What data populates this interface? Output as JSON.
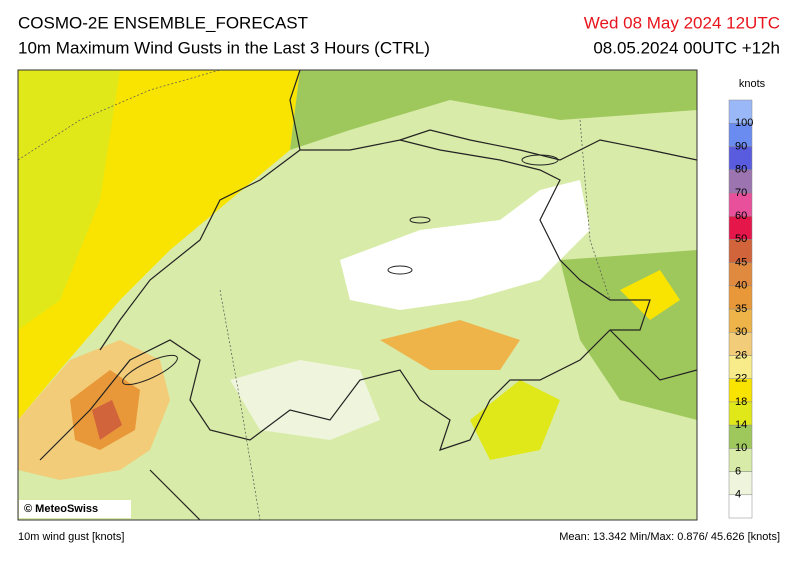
{
  "header": {
    "title": "COSMO-2E ENSEMBLE_FORECAST",
    "subtitle": "10m Maximum Wind Gusts in the Last 3 Hours (CTRL)",
    "valid_time": "Wed 08 May 2024 12UTC",
    "run": "08.05.2024 00UTC +12h"
  },
  "map": {
    "credit": "© MeteoSwiss"
  },
  "colorbar": {
    "unit": "knots",
    "ticks": [
      4,
      6,
      10,
      14,
      18,
      22,
      26,
      30,
      35,
      40,
      45,
      50,
      60,
      70,
      80,
      90,
      100
    ],
    "colors": [
      "#ffffff",
      "#eef5dc",
      "#d8eba8",
      "#9fc85c",
      "#e1e81a",
      "#f8e400",
      "#f7eb8a",
      "#f2cc78",
      "#eeb44a",
      "#e89838",
      "#e08a40",
      "#d2643c",
      "#e4164a",
      "#e8509c",
      "#9c74b0",
      "#5a5ce0",
      "#6a8cf0",
      "#9ab8f8"
    ]
  },
  "footer": {
    "variable": "10m wind gust [knots]",
    "stats": "Mean:  13.342 Min/Max:  0.876/ 45.626 [knots]"
  }
}
